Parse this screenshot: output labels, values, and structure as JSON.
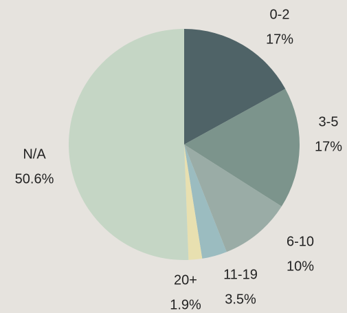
{
  "chart_data": {
    "type": "pie",
    "categories": [
      "0-2",
      "3-5",
      "6-10",
      "11-19",
      "20+",
      "N/A"
    ],
    "values": [
      17,
      17,
      10,
      3.5,
      1.9,
      50.6
    ],
    "value_labels": [
      "17%",
      "17%",
      "10%",
      "3.5%",
      "1.9%",
      "50.6%"
    ],
    "colors": [
      "#4f6367",
      "#7c948c",
      "#9aaca6",
      "#9bbcc0",
      "#e8e0b0",
      "#c5d6c5"
    ]
  }
}
